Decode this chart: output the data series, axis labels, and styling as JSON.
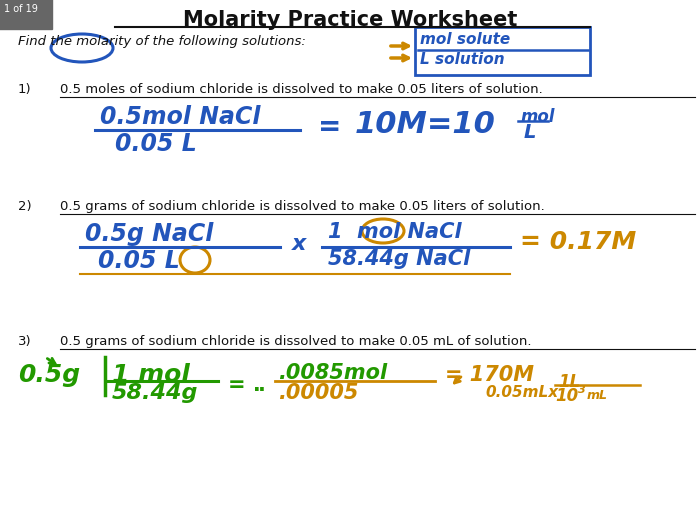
{
  "bg_color": "#ffffff",
  "slide_label": "1 of 19",
  "title": "Molarity Practice Worksheet",
  "subtitle": "Find the molarity of the following solutions:",
  "p1": "0.5 moles of sodium chloride is dissolved to make 0.05 liters of solution.",
  "p2": "0.5 grams of sodium chloride is dissolved to make 0.05 liters of solution.",
  "p3": "0.5 grams of sodium chloride is dissolved to make 0.05 mL of solution.",
  "blue": "#2255bb",
  "orange": "#cc8800",
  "green": "#229900",
  "black": "#111111",
  "gray": "#777777"
}
